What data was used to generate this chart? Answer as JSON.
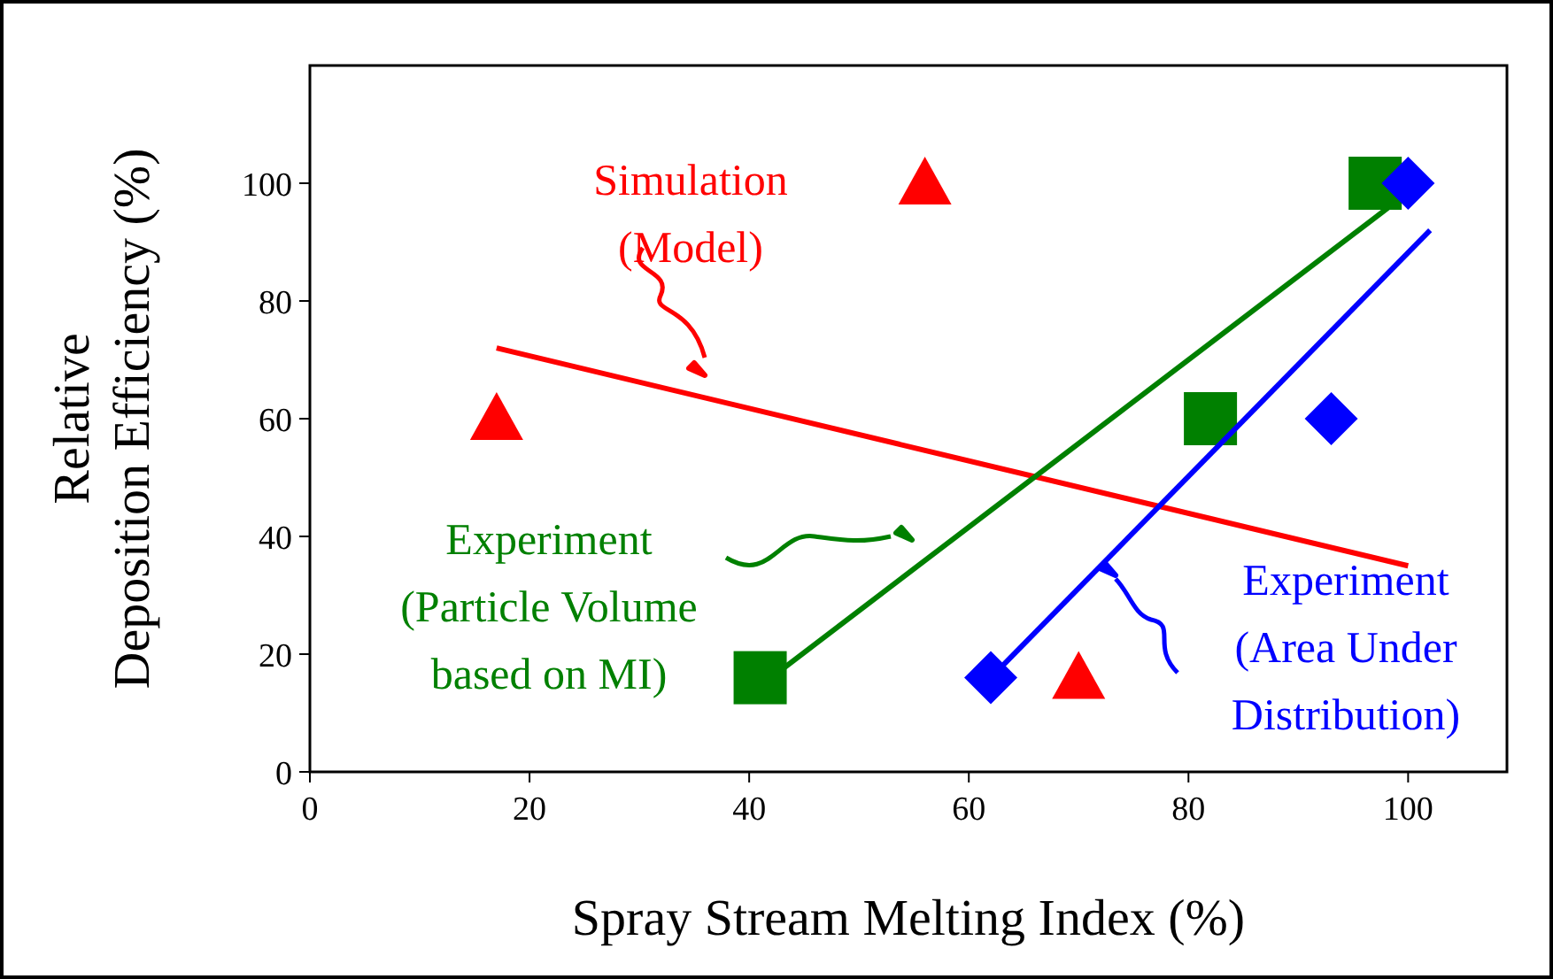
{
  "chart_data": {
    "type": "scatter",
    "xlabel": "Spray Stream Melting Index (%)",
    "ylabel": "Relative\nDeposition Efficiency (%)",
    "xlim": [
      0,
      109
    ],
    "ylim": [
      0,
      120
    ],
    "xticks": [
      0,
      20,
      40,
      60,
      80,
      100
    ],
    "yticks": [
      0,
      20,
      40,
      60,
      80,
      100
    ],
    "grid": false,
    "series": [
      {
        "marker": "triangle",
        "color": "#ff0000",
        "x": [
          17,
          56,
          70
        ],
        "values": [
          60,
          100,
          16
        ]
      },
      {
        "type": "line",
        "color": "#ff0000",
        "x": [
          17,
          100
        ],
        "values": [
          72,
          35
        ]
      },
      {
        "marker": "square",
        "color": "#008000",
        "x": [
          41,
          82,
          97
        ],
        "values": [
          16,
          60,
          100
        ]
      },
      {
        "type": "line",
        "color": "#008000",
        "x": [
          42,
          99
        ],
        "values": [
          16,
          97
        ]
      },
      {
        "marker": "diamond",
        "color": "#0000ff",
        "x": [
          62,
          93,
          100
        ],
        "values": [
          16,
          60,
          100
        ]
      },
      {
        "type": "line",
        "color": "#0000ff",
        "x": [
          62,
          102
        ],
        "values": [
          16,
          92
        ]
      }
    ],
    "annotations": [
      "Simulation\n(Model)",
      "Experiment\n(Particle Volume\nbased on MI)",
      "Experiment\n(Area Under\nDistribution)"
    ]
  }
}
